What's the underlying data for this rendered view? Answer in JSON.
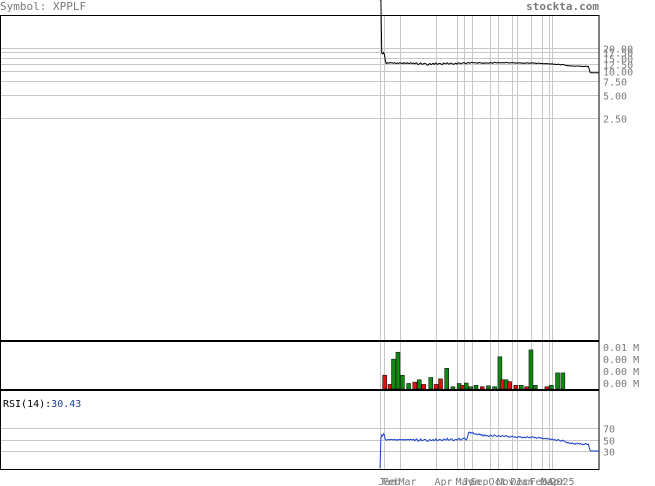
{
  "header": {
    "symbol_text": "Symbol: XPPLF",
    "site": "stockta.com"
  },
  "chart_data": [
    {
      "type": "line",
      "panel": "price",
      "scale": "log",
      "y_ticks": [
        "20.00",
        "17.50",
        "15.00",
        "12.50",
        "10.00",
        "7.50",
        "5.00",
        "2.50"
      ],
      "y_tick_values": [
        20,
        17.5,
        15,
        12.5,
        10,
        7.5,
        5,
        2.5
      ],
      "x_ticks": [
        "Jan",
        "Feb",
        "Mar",
        "Apr",
        "May",
        "Jun",
        "Sep",
        "Oct",
        "Nov",
        "Dec",
        "Jan",
        "Feb",
        "Mar",
        "Apr",
        "2025"
      ],
      "x_tick_index": [
        0,
        4,
        23,
        63,
        87,
        95,
        104,
        124,
        133,
        149,
        155,
        170,
        183,
        191,
        194
      ],
      "series": [
        {
          "values": [
            230,
            120,
            17.2,
            16.8,
            17.5,
            16.5,
            13.8,
            12.6,
            12.8,
            12.9,
            12.7,
            12.9,
            13.0,
            12.8,
            12.9,
            12.7,
            12.9,
            12.8,
            12.6,
            12.7,
            12.8,
            12.6,
            12.9,
            12.8,
            12.7,
            12.8,
            12.6,
            12.9,
            12.7,
            12.8,
            12.6,
            12.9,
            12.7,
            12.6,
            12.8,
            12.9,
            12.6,
            12.7,
            12.8,
            12.5,
            12.7,
            12.9,
            12.6,
            12.2,
            12.4,
            12.6,
            12.8,
            12.4,
            12.3,
            12.5,
            12.7,
            12.6,
            12.5,
            12.1,
            12.0,
            12.3,
            12.6,
            12.4,
            12.2,
            12.5,
            12.7,
            12.3,
            12.5,
            12.8,
            12.4,
            12.3,
            12.5,
            12.7,
            12.6,
            12.4,
            12.2,
            12.5,
            12.8,
            12.6,
            12.5,
            12.7,
            12.9,
            12.5,
            12.4,
            12.6,
            12.8,
            12.7,
            12.4,
            12.3,
            12.5,
            12.7,
            12.6,
            12.4,
            12.7,
            12.9,
            12.8,
            12.5,
            12.6,
            12.8,
            12.9,
            13.0,
            12.7,
            12.5,
            12.8,
            13.0,
            12.9,
            12.7,
            12.9,
            13.1,
            13.0,
            12.9,
            12.8,
            13.0,
            12.9,
            12.8,
            12.7,
            12.9,
            13.0,
            12.8,
            12.9,
            12.7,
            12.8,
            12.6,
            12.9,
            12.8,
            12.7,
            12.9,
            12.8,
            12.7,
            12.9,
            13.0,
            12.8,
            12.7,
            12.9,
            13.1,
            13.0,
            12.9,
            12.8,
            12.9,
            13.0,
            12.9,
            12.8,
            12.9,
            13.0,
            12.9,
            12.8,
            12.9,
            13.1,
            13.0,
            12.9,
            12.8,
            12.9,
            12.8,
            12.9,
            13.0,
            12.9,
            12.8,
            12.9,
            12.8,
            12.7,
            12.8,
            12.9,
            12.8,
            12.9,
            12.8,
            12.7,
            12.8,
            12.7,
            12.8,
            12.7,
            12.8,
            12.9,
            12.8,
            12.7,
            12.8,
            12.7,
            12.8,
            12.9,
            12.8,
            12.7,
            12.8,
            12.7,
            12.6,
            12.7,
            12.8,
            12.7,
            12.6,
            12.7,
            12.6,
            12.5,
            12.6,
            12.5,
            12.6,
            12.5,
            12.6,
            12.5,
            12.4,
            12.5,
            12.4,
            12.5,
            12.4,
            12.3,
            12.4,
            12.3,
            12.2,
            12.3,
            12.4,
            12.3,
            12.2,
            12.1,
            12.2,
            12.3,
            12.2,
            12.1,
            12.0,
            11.9,
            11.8,
            11.9,
            11.8,
            11.7,
            11.8,
            11.7,
            11.8,
            11.7,
            11.6,
            11.7,
            11.6,
            11.7,
            11.8,
            11.7,
            11.6,
            11.7,
            11.6,
            11.5,
            11.6,
            11.5,
            11.6,
            11.7,
            11.6,
            11.5,
            11.6,
            10.6,
            9.7,
            9.6,
            9.6,
            9.6,
            9.6,
            9.6,
            9.6,
            9.6,
            9.6,
            9.6,
            9.6
          ]
        }
      ]
    },
    {
      "type": "bar",
      "panel": "volume",
      "y_ticks": [
        "0.01 M",
        "0.00 M",
        "0.00 M",
        "0.00 M"
      ],
      "bars": [
        {
          "i": 3,
          "v": 0.3,
          "c": "red"
        },
        {
          "i": 9,
          "v": 0.1,
          "c": "red"
        },
        {
          "i": 13,
          "v": 0.65,
          "c": "green"
        },
        {
          "i": 18,
          "v": 0.8,
          "c": "green"
        },
        {
          "i": 23,
          "v": 0.3,
          "c": "green"
        },
        {
          "i": 30,
          "v": 0.12,
          "c": "green"
        },
        {
          "i": 37,
          "v": 0.15,
          "c": "red"
        },
        {
          "i": 42,
          "v": 0.2,
          "c": "green"
        },
        {
          "i": 47,
          "v": 0.1,
          "c": "red"
        },
        {
          "i": 55,
          "v": 0.25,
          "c": "green"
        },
        {
          "i": 61,
          "v": 0.1,
          "c": "red"
        },
        {
          "i": 66,
          "v": 0.22,
          "c": "red"
        },
        {
          "i": 73,
          "v": 0.45,
          "c": "green"
        },
        {
          "i": 80,
          "v": 0.05,
          "c": "green"
        },
        {
          "i": 87,
          "v": 0.12,
          "c": "green"
        },
        {
          "i": 91,
          "v": 0.08,
          "c": "red"
        },
        {
          "i": 95,
          "v": 0.13,
          "c": "green"
        },
        {
          "i": 100,
          "v": 0.05,
          "c": "green"
        },
        {
          "i": 106,
          "v": 0.08,
          "c": "green"
        },
        {
          "i": 113,
          "v": 0.05,
          "c": "red"
        },
        {
          "i": 120,
          "v": 0.07,
          "c": "green"
        },
        {
          "i": 127,
          "v": 0.05,
          "c": "green"
        },
        {
          "i": 133,
          "v": 0.7,
          "c": "green"
        },
        {
          "i": 136,
          "v": 0.2,
          "c": "red"
        },
        {
          "i": 140,
          "v": 0.2,
          "c": "green"
        },
        {
          "i": 144,
          "v": 0.16,
          "c": "red"
        },
        {
          "i": 151,
          "v": 0.08,
          "c": "red"
        },
        {
          "i": 157,
          "v": 0.08,
          "c": "green"
        },
        {
          "i": 163,
          "v": 0.05,
          "c": "red"
        },
        {
          "i": 168,
          "v": 0.85,
          "c": "green"
        },
        {
          "i": 173,
          "v": 0.08,
          "c": "green"
        },
        {
          "i": 186,
          "v": 0.05,
          "c": "red"
        },
        {
          "i": 191,
          "v": 0.08,
          "c": "green"
        },
        {
          "i": 198,
          "v": 0.35,
          "c": "green"
        },
        {
          "i": 204,
          "v": 0.35,
          "c": "green"
        }
      ]
    },
    {
      "type": "line",
      "panel": "rsi",
      "label": "RSI(14):",
      "value_text": "30.43",
      "ylim": [
        0,
        100
      ],
      "y_ticks": [
        "70",
        "50",
        "30"
      ],
      "y_tick_values": [
        70,
        50,
        30
      ],
      "series": [
        {
          "values": [
            0,
            52,
            58,
            56,
            60,
            58,
            50,
            49,
            49,
            50,
            50,
            49,
            50,
            50,
            50,
            49,
            50,
            50,
            49,
            49,
            50,
            49,
            50,
            50,
            49,
            50,
            49,
            50,
            49,
            50,
            49,
            50,
            50,
            49,
            50,
            50,
            49,
            50,
            50,
            48,
            49,
            51,
            50,
            47,
            48,
            49,
            51,
            48,
            48,
            49,
            50,
            50,
            49,
            47,
            47,
            48,
            50,
            49,
            48,
            49,
            50,
            48,
            49,
            51,
            49,
            48,
            49,
            50,
            50,
            49,
            48,
            49,
            51,
            50,
            49,
            50,
            52,
            49,
            49,
            50,
            51,
            51,
            49,
            48,
            49,
            50,
            50,
            49,
            50,
            52,
            51,
            49,
            50,
            51,
            52,
            53,
            51,
            49,
            51,
            56,
            62,
            63,
            61,
            62,
            61,
            62,
            60,
            59,
            60,
            59,
            58,
            59,
            60,
            58,
            59,
            57,
            58,
            56,
            58,
            57,
            56,
            57,
            56,
            55,
            57,
            58,
            56,
            55,
            57,
            58,
            57,
            56,
            55,
            56,
            57,
            56,
            55,
            56,
            57,
            56,
            55,
            56,
            57,
            56,
            55,
            54,
            55,
            54,
            55,
            56,
            55,
            54,
            55,
            54,
            53,
            54,
            55,
            54,
            55,
            54,
            53,
            54,
            53,
            54,
            53,
            54,
            55,
            54,
            53,
            54,
            53,
            54,
            55,
            54,
            53,
            54,
            53,
            52,
            53,
            54,
            53,
            52,
            53,
            52,
            51,
            52,
            51,
            52,
            51,
            52,
            51,
            50,
            51,
            50,
            51,
            50,
            49,
            50,
            49,
            48,
            49,
            50,
            49,
            48,
            47,
            48,
            49,
            48,
            47,
            46,
            45,
            44,
            45,
            44,
            43,
            44,
            43,
            44,
            43,
            42,
            43,
            42,
            43,
            44,
            43,
            42,
            43,
            42,
            41,
            42,
            41,
            42,
            43,
            42,
            41,
            42,
            36,
            31,
            30,
            30,
            30,
            30,
            30,
            30,
            30,
            30,
            30,
            30
          ]
        }
      ]
    }
  ]
}
